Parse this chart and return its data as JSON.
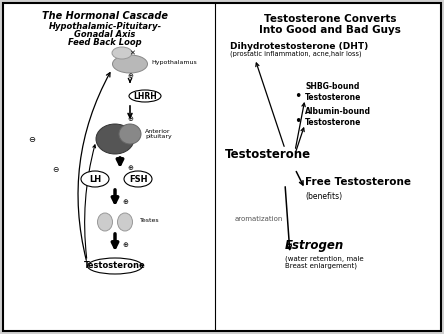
{
  "bg_color": "#d0d0d0",
  "title_left": "The Hormonal Cascade",
  "subtitle_left1": "Hypothalamic-Pituitary-",
  "subtitle_left2": "Gonadal Axis",
  "subtitle_left3": "Feed Back Loop",
  "title_right1": "Testosterone Converts",
  "title_right2": "Into Good and Bad Guys",
  "dht_label": "Dihydrotestosterone (DHT)",
  "dht_sub": "(prostatic inflammation, acne,hair loss)",
  "shbg_label": "SHBG-bound\nTestosterone",
  "albumin_label": "Albumin-bound\nTestosterone",
  "free_t_label": "Free Testosterone",
  "free_t_sub": "(benefits)",
  "estrogen_label": "Estrogen",
  "estrogen_sub": "(water retention, male\nBreast enlargement)",
  "testosterone_label": "Testosterone",
  "aromatization_label": "aromatization",
  "hypothalamus_label": "Hypothalamus",
  "anterior_label": "Anterior\npituitary",
  "lhrh_label": "LHRH",
  "lh_label": "LH",
  "fsh_label": "FSH",
  "testes_label": "Testes",
  "testosterone_oval_label": "Testosterone"
}
